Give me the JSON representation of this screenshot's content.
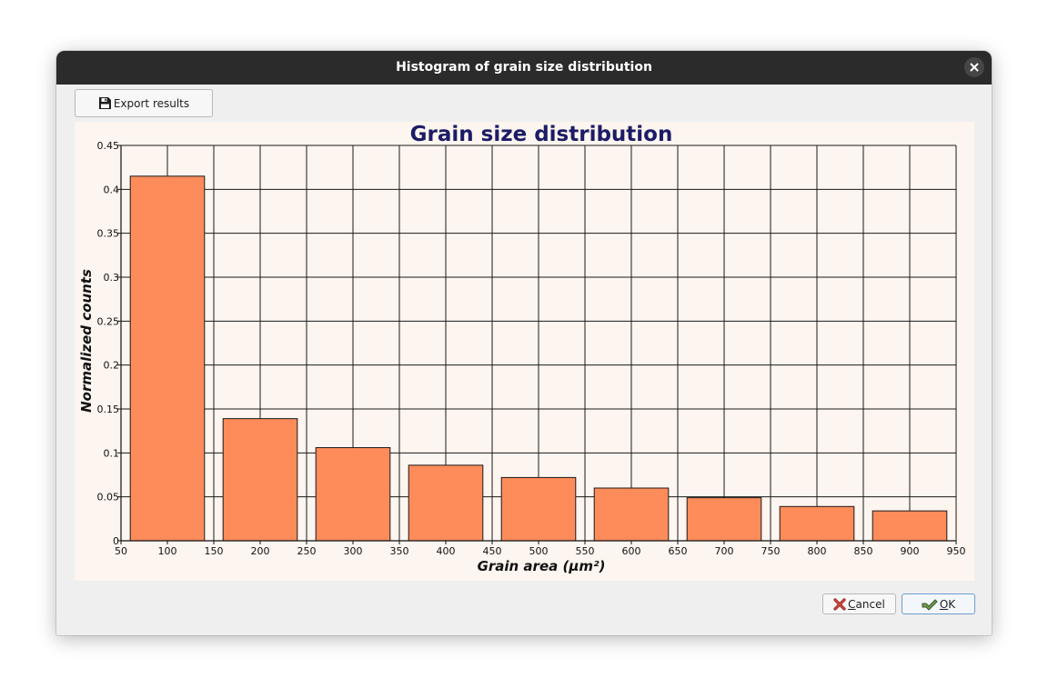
{
  "window": {
    "title": "Histogram of grain size distribution",
    "close_icon": "close-icon"
  },
  "toolbar": {
    "export_label": "Export results",
    "export_icon": "floppy-disk-icon"
  },
  "footer": {
    "cancel_label_mnemonic": "C",
    "cancel_label_rest": "ancel",
    "cancel_icon": "red-x-icon",
    "ok_label_mnemonic": "O",
    "ok_label_rest": "K",
    "ok_icon": "green-check-icon"
  },
  "chart_data": {
    "type": "bar",
    "title": "Grain size distribution",
    "xlabel": "Grain area (µm²)",
    "ylabel": "Normalized counts",
    "categories": [
      "100",
      "200",
      "300",
      "400",
      "500",
      "600",
      "700",
      "800",
      "900"
    ],
    "x": [
      100,
      200,
      300,
      400,
      500,
      600,
      700,
      800,
      900
    ],
    "bin_width": 80,
    "values": [
      0.415,
      0.139,
      0.106,
      0.086,
      0.072,
      0.06,
      0.049,
      0.039,
      0.034
    ],
    "xlim": [
      50,
      950
    ],
    "ylim": [
      0,
      0.45
    ],
    "x_ticks": [
      50,
      100,
      150,
      200,
      250,
      300,
      350,
      400,
      450,
      500,
      550,
      600,
      650,
      700,
      750,
      800,
      850,
      900,
      950
    ],
    "y_ticks": [
      "0",
      "0.05",
      "0.1",
      "0.15",
      "0.2",
      "0.25",
      "0.3",
      "0.35",
      "0.4",
      "0.45"
    ],
    "grid": true,
    "bar_color": "#fd8c5a",
    "bar_edge_color": "#1a1a1a",
    "background_color": "#fdf5ef",
    "title_color": "#1c1c66"
  }
}
